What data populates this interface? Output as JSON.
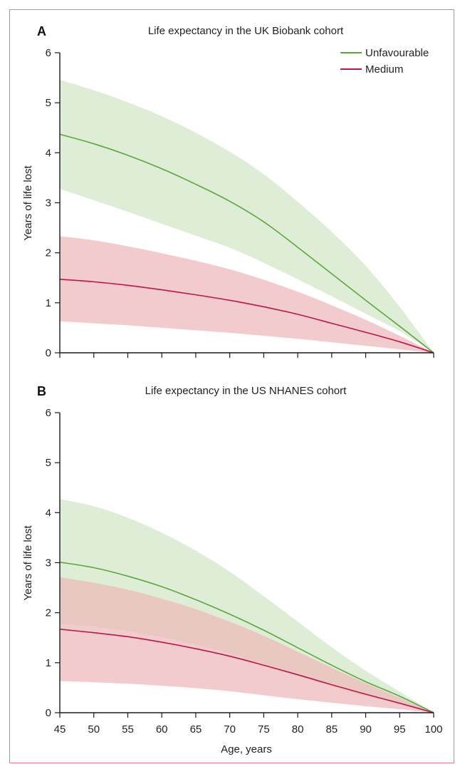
{
  "chart_data": [
    {
      "panel": "A",
      "type": "line",
      "title": "Life expectancy in the UK Biobank cohort",
      "xlabel": "",
      "ylabel": "Years of life lost",
      "xlim": [
        45,
        100
      ],
      "ylim": [
        0,
        6
      ],
      "x_ticks": [
        45,
        50,
        55,
        60,
        65,
        70,
        75,
        80,
        85,
        90,
        95,
        100
      ],
      "y_ticks": [
        0,
        1,
        2,
        3,
        4,
        5,
        6
      ],
      "x_tick_labels_shown": false,
      "legend": {
        "position": "top-right",
        "entries": [
          "Unfavourable",
          "Medium"
        ]
      },
      "x": [
        45,
        50,
        55,
        60,
        65,
        70,
        75,
        80,
        85,
        90,
        95,
        100
      ],
      "series": [
        {
          "name": "Unfavourable",
          "color": "#5aa83a",
          "band_color": "#d3e8c8",
          "values": [
            4.37,
            4.18,
            3.95,
            3.68,
            3.37,
            3.03,
            2.62,
            2.11,
            1.58,
            1.05,
            0.53,
            0.0
          ],
          "lower": [
            3.28,
            3.05,
            2.82,
            2.58,
            2.34,
            2.1,
            1.8,
            1.47,
            1.13,
            0.78,
            0.43,
            0.0
          ],
          "upper": [
            5.46,
            5.25,
            5.01,
            4.73,
            4.4,
            4.02,
            3.57,
            3.02,
            2.42,
            1.74,
            0.92,
            0.0
          ]
        },
        {
          "name": "Medium",
          "color": "#c0154c",
          "band_color": "#eebbbb",
          "values": [
            1.47,
            1.42,
            1.35,
            1.26,
            1.16,
            1.05,
            0.92,
            0.77,
            0.59,
            0.41,
            0.22,
            0.0
          ],
          "lower": [
            0.63,
            0.59,
            0.55,
            0.5,
            0.45,
            0.4,
            0.34,
            0.28,
            0.21,
            0.14,
            0.07,
            0.0
          ],
          "upper": [
            2.33,
            2.25,
            2.13,
            1.99,
            1.84,
            1.67,
            1.46,
            1.22,
            0.95,
            0.66,
            0.34,
            0.0
          ]
        }
      ]
    },
    {
      "panel": "B",
      "type": "line",
      "title": "Life expectancy in the US NHANES cohort",
      "xlabel": "Age, years",
      "ylabel": "Years of life lost",
      "xlim": [
        45,
        100
      ],
      "ylim": [
        0,
        6
      ],
      "x_ticks": [
        45,
        50,
        55,
        60,
        65,
        70,
        75,
        80,
        85,
        90,
        95,
        100
      ],
      "y_ticks": [
        0,
        1,
        2,
        3,
        4,
        5,
        6
      ],
      "x_tick_labels_shown": true,
      "x": [
        45,
        50,
        55,
        60,
        65,
        70,
        75,
        80,
        85,
        90,
        95,
        100
      ],
      "series": [
        {
          "name": "Unfavourable",
          "color": "#5aa83a",
          "band_color": "#d3e8c8",
          "values": [
            3.01,
            2.9,
            2.73,
            2.52,
            2.26,
            1.97,
            1.65,
            1.3,
            0.95,
            0.62,
            0.33,
            0.0
          ],
          "lower": [
            1.78,
            1.72,
            1.63,
            1.51,
            1.36,
            1.18,
            0.97,
            0.74,
            0.52,
            0.34,
            0.19,
            0.0
          ],
          "upper": [
            4.27,
            4.13,
            3.9,
            3.6,
            3.24,
            2.82,
            2.33,
            1.82,
            1.31,
            0.84,
            0.42,
            0.0
          ]
        },
        {
          "name": "Medium",
          "color": "#c0154c",
          "band_color": "#eebbbb",
          "values": [
            1.67,
            1.6,
            1.52,
            1.41,
            1.28,
            1.13,
            0.95,
            0.76,
            0.56,
            0.37,
            0.19,
            0.0
          ],
          "lower": [
            0.63,
            0.61,
            0.58,
            0.54,
            0.49,
            0.43,
            0.35,
            0.27,
            0.2,
            0.13,
            0.07,
            0.0
          ],
          "upper": [
            2.71,
            2.6,
            2.46,
            2.28,
            2.07,
            1.82,
            1.54,
            1.22,
            0.9,
            0.59,
            0.3,
            0.0
          ]
        }
      ]
    }
  ]
}
